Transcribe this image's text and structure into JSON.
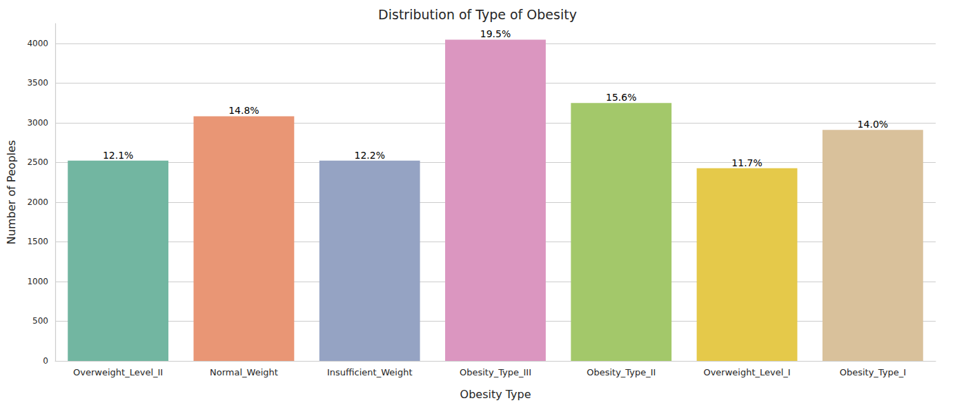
{
  "chart_data": {
    "type": "bar",
    "title": "Distribution of Type of Obesity",
    "x_label": "Obesity Type",
    "y_label": "Number of Peoples",
    "categories": [
      "Overweight_Level_II",
      "Normal_Weight",
      "Insufficient_Weight",
      "Obesity_Type_III",
      "Obesity_Type_II",
      "Overweight_Level_I",
      "Obesity_Type_I"
    ],
    "values": [
      2522,
      3082,
      2523,
      4046,
      3248,
      2427,
      2910
    ],
    "percent_labels": [
      "12.1%",
      "14.8%",
      "12.2%",
      "19.5%",
      "15.6%",
      "11.7%",
      "14.0%"
    ],
    "colors": [
      "#72b6a1",
      "#e99675",
      "#95a3c3",
      "#db96c0",
      "#a3c86a",
      "#e5c94a",
      "#d9c19b"
    ],
    "ylim": [
      0,
      4250
    ],
    "yticks": [
      0,
      500,
      1000,
      1500,
      2000,
      2500,
      3000,
      3500,
      4000
    ],
    "grid": true
  }
}
